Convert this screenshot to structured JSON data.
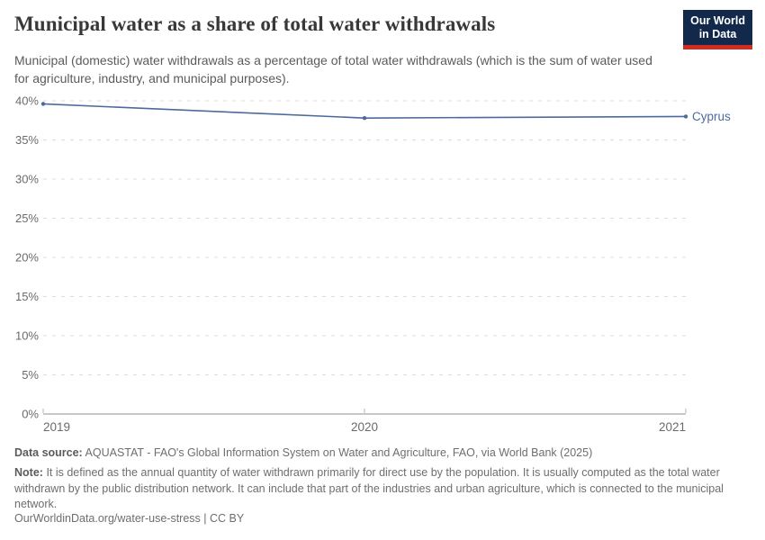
{
  "header": {
    "title": "Municipal water as a share of total water withdrawals",
    "subtitle": "Municipal (domestic) water withdrawals as a percentage of total water withdrawals (which is the sum of water used for agriculture, industry, and municipal purposes).",
    "logo": {
      "line1": "Our World",
      "line2": "in Data"
    }
  },
  "chart_data": {
    "type": "line",
    "title": "Municipal water as a share of total water withdrawals",
    "x": [
      2019,
      2020,
      2021
    ],
    "x_tick_labels": [
      "2019",
      "2020",
      "2021"
    ],
    "series": [
      {
        "name": "Cyprus",
        "values": [
          39.6,
          37.8,
          38.0
        ]
      }
    ],
    "ylim": [
      0,
      40
    ],
    "y_tick_step": 5,
    "y_tick_suffix": "%",
    "grid": "horizontal-dashed",
    "legend_position": "end-of-line-label"
  },
  "footer": {
    "data_source_label": "Data source:",
    "data_source_text": "AQUASTAT - FAO's Global Information System on Water and Agriculture, FAO, via World Bank (2025)",
    "note_label": "Note:",
    "note_text": "It is defined as the annual quantity of water withdrawn primarily for direct use by the population. It is usually computed as the total water withdrawn by the public distribution network. It can include that part of the industries and urban agriculture, which is connected to the municipal network.",
    "link_text": "OurWorldinData.org/water-use-stress | CC BY"
  },
  "colors": {
    "line": "#4c6a9c",
    "entity_label": "#4c6a9c",
    "grid": "#dcdcdc",
    "axis": "#c8c8c8",
    "tick": "#b5b5b5",
    "axis_label": "#6b6b6b",
    "logo_bg": "#12294c",
    "logo_stripe": "#d42b21",
    "title": "#383838",
    "subtitle": "#5b5b5b"
  }
}
